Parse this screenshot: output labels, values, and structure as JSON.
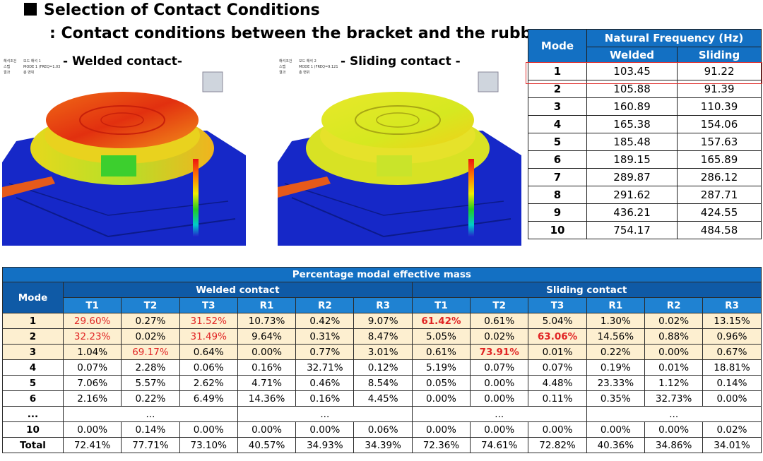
{
  "heading": {
    "title": "Selection of Contact Conditions",
    "subtitle": ": Contact conditions between the bracket and the rubber."
  },
  "figures": {
    "welded_caption": "- Welded contact-",
    "sliding_caption": "- Sliding contact -",
    "welded_meta": [
      "해석조건",
      "스텝",
      "결과"
    ],
    "welded_meta_vals": [
      "모드 해석 1",
      "MODE 1 (FREQ=1.0345e+002)",
      "총 변위"
    ],
    "sliding_meta": [
      "해석조건",
      "스텝",
      "결과"
    ],
    "sliding_meta_vals": [
      "모드 해석 2",
      "MODE 1 (FREQ=9.1215e+001)",
      "총 변위"
    ],
    "colors": {
      "blue": "#1628c8",
      "red": "#e33b12",
      "yellow": "#e6e020",
      "green": "#2ecc3a",
      "orange": "#f08a18"
    }
  },
  "freq_table": {
    "header_mode": "Mode",
    "header_group": "Natural Frequency (Hz)",
    "header_welded": "Welded",
    "header_sliding": "Sliding",
    "rows": [
      {
        "mode": "1",
        "welded": "103.45",
        "sliding": "91.22"
      },
      {
        "mode": "2",
        "welded": "105.88",
        "sliding": "91.39"
      },
      {
        "mode": "3",
        "welded": "160.89",
        "sliding": "110.39"
      },
      {
        "mode": "4",
        "welded": "165.38",
        "sliding": "154.06"
      },
      {
        "mode": "5",
        "welded": "185.48",
        "sliding": "157.63"
      },
      {
        "mode": "6",
        "welded": "189.15",
        "sliding": "165.89"
      },
      {
        "mode": "7",
        "welded": "289.87",
        "sliding": "286.12"
      },
      {
        "mode": "8",
        "welded": "291.62",
        "sliding": "287.71"
      },
      {
        "mode": "9",
        "welded": "436.21",
        "sliding": "424.55"
      },
      {
        "mode": "10",
        "welded": "754.17",
        "sliding": "484.58"
      }
    ]
  },
  "mass_table": {
    "caption": "Percentage modal effective mass",
    "header_mode": "Mode",
    "group_welded": "Welded contact",
    "group_sliding": "Sliding contact",
    "axes": [
      "T1",
      "T2",
      "T3",
      "R1",
      "R2",
      "R3",
      "T1",
      "T2",
      "T3",
      "R1",
      "R2",
      "R3"
    ],
    "rows": [
      {
        "mode": "1",
        "cells": [
          "29.60%",
          "0.27%",
          "31.52%",
          "10.73%",
          "0.42%",
          "9.07%",
          "61.42%",
          "0.61%",
          "5.04%",
          "1.30%",
          "0.02%",
          "13.15%"
        ]
      },
      {
        "mode": "2",
        "cells": [
          "32.23%",
          "0.02%",
          "31.49%",
          "9.64%",
          "0.31%",
          "8.47%",
          "5.05%",
          "0.02%",
          "63.06%",
          "14.56%",
          "0.88%",
          "0.96%"
        ]
      },
      {
        "mode": "3",
        "cells": [
          "1.04%",
          "69.17%",
          "0.64%",
          "0.00%",
          "0.77%",
          "3.01%",
          "0.61%",
          "73.91%",
          "0.01%",
          "0.22%",
          "0.00%",
          "0.67%"
        ]
      },
      {
        "mode": "4",
        "cells": [
          "0.07%",
          "2.28%",
          "0.06%",
          "0.16%",
          "32.71%",
          "0.12%",
          "5.19%",
          "0.07%",
          "0.07%",
          "0.19%",
          "0.01%",
          "18.81%"
        ]
      },
      {
        "mode": "5",
        "cells": [
          "7.06%",
          "5.57%",
          "2.62%",
          "4.71%",
          "0.46%",
          "8.54%",
          "0.05%",
          "0.00%",
          "4.48%",
          "23.33%",
          "1.12%",
          "0.14%"
        ]
      },
      {
        "mode": "6",
        "cells": [
          "2.16%",
          "0.22%",
          "6.49%",
          "14.36%",
          "0.16%",
          "4.45%",
          "0.00%",
          "0.00%",
          "0.11%",
          "0.35%",
          "32.73%",
          "0.00%"
        ]
      }
    ],
    "ellipsis_mode": "...",
    "ellipsis_cells": [
      "...",
      "...",
      "...",
      "..."
    ],
    "row10": {
      "mode": "10",
      "cells": [
        "0.00%",
        "0.14%",
        "0.00%",
        "0.00%",
        "0.00%",
        "0.06%",
        "0.00%",
        "0.00%",
        "0.00%",
        "0.00%",
        "0.00%",
        "0.02%"
      ]
    },
    "total": {
      "mode": "Total",
      "cells": [
        "72.41%",
        "77.71%",
        "73.10%",
        "40.57%",
        "34.93%",
        "34.39%",
        "72.36%",
        "74.61%",
        "72.82%",
        "40.36%",
        "34.86%",
        "34.01%"
      ]
    }
  }
}
